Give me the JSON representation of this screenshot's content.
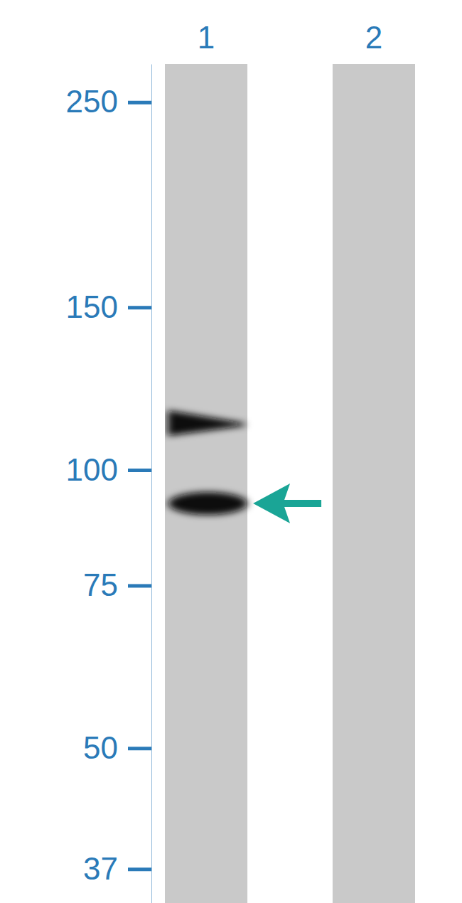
{
  "chart_data": {
    "type": "blot",
    "categories": [
      "1",
      "2"
    ],
    "values": [
      [
        112,
        92
      ],
      []
    ],
    "ylim": [
      275,
      34
    ],
    "yticks": [
      250,
      150,
      100,
      75,
      50,
      37
    ],
    "log": "y",
    "tick_labels": true,
    "color": "#2a7ab8"
  }
}
